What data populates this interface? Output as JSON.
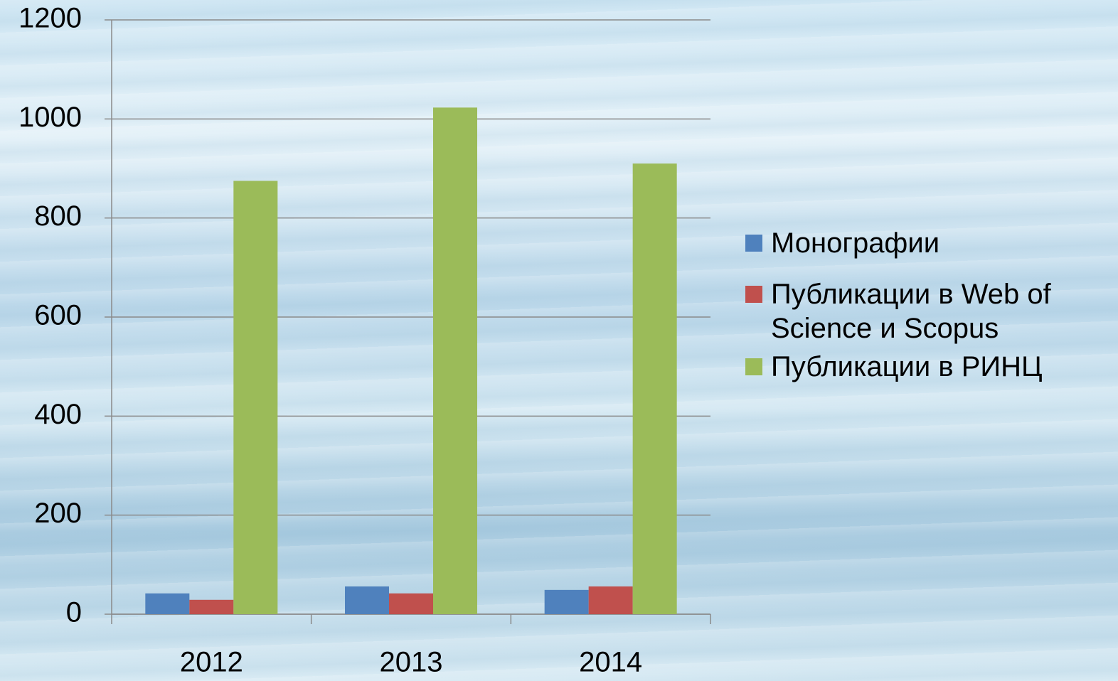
{
  "chart_data": {
    "type": "bar",
    "categories": [
      "2012",
      "2013",
      "2014"
    ],
    "series": [
      {
        "name": "Монографии",
        "color": "#4f81bd",
        "values": [
          42,
          56,
          49
        ]
      },
      {
        "name": "Публикации в Web of Science и Scopus",
        "color": "#c0504d",
        "values": [
          29,
          42,
          56
        ]
      },
      {
        "name": "Публикации в РИНЦ",
        "color": "#9bbb59",
        "values": [
          875,
          1023,
          910
        ]
      }
    ],
    "ylim": [
      0,
      1200
    ],
    "yticks": [
      0,
      200,
      400,
      600,
      800,
      1000,
      1200
    ],
    "grid": true,
    "legend": "right"
  }
}
